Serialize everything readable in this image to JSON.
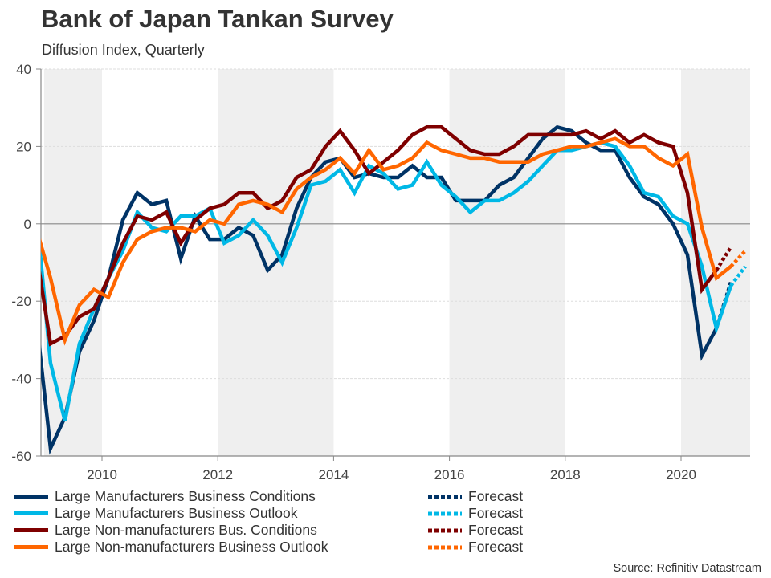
{
  "title": "Bank of Japan Tankan Survey",
  "subtitle": "Diffusion Index, Quarterly",
  "source": "Source: Refinitiv Datastream",
  "chart_data": {
    "type": "line",
    "title": "Bank of Japan Tankan Survey",
    "subtitle": "Diffusion Index, Quarterly",
    "xlabel": "",
    "ylabel": "",
    "ylim": [
      -60,
      40
    ],
    "xlim": [
      2009.0,
      2021.2
    ],
    "yticks": [
      40,
      20,
      0,
      -20,
      -40,
      -60
    ],
    "ytick_labels": [
      "40",
      "20",
      "0",
      "-20",
      "-40",
      "-60"
    ],
    "xticks": [
      2010,
      2012,
      2014,
      2016,
      2018,
      2020
    ],
    "xtick_labels": [
      "2010",
      "2012",
      "2014",
      "2016",
      "2018",
      "2020"
    ],
    "grid": "horizontal dashed",
    "shaded_periods": [
      [
        2009.0,
        2010
      ],
      [
        2012,
        2014
      ],
      [
        2016,
        2018
      ],
      [
        2020,
        2021.2
      ]
    ],
    "legend_placement": "bottom",
    "x": [
      "2008-12",
      "2009-03",
      "2009-06",
      "2009-09",
      "2009-12",
      "2010-03",
      "2010-06",
      "2010-09",
      "2010-12",
      "2011-03",
      "2011-06",
      "2011-09",
      "2011-12",
      "2012-03",
      "2012-06",
      "2012-09",
      "2012-12",
      "2013-03",
      "2013-06",
      "2013-09",
      "2013-12",
      "2014-03",
      "2014-06",
      "2014-09",
      "2014-12",
      "2015-03",
      "2015-06",
      "2015-09",
      "2015-12",
      "2016-03",
      "2016-06",
      "2016-09",
      "2016-12",
      "2017-03",
      "2017-06",
      "2017-09",
      "2017-12",
      "2018-03",
      "2018-06",
      "2018-09",
      "2018-12",
      "2019-03",
      "2019-06",
      "2019-09",
      "2019-12",
      "2020-03",
      "2020-06",
      "2020-09",
      "2020-12"
    ],
    "series": [
      {
        "name": "Large Manufacturers Business Conditions",
        "color": "#003366",
        "values": [
          -24,
          -58,
          -50,
          -33,
          -25,
          -14,
          1,
          8,
          5,
          6,
          -9,
          2,
          -4,
          -4,
          -1,
          -3,
          -12,
          -8,
          4,
          12,
          16,
          17,
          12,
          13,
          12,
          12,
          15,
          12,
          12,
          6,
          6,
          6,
          10,
          12,
          17,
          22,
          25,
          24,
          21,
          19,
          19,
          12,
          7,
          5,
          0,
          -8,
          -34,
          -27,
          null
        ],
        "forecast": {
          "label": "Forecast",
          "x": [
            "2020-09",
            "2020-12"
          ],
          "values": [
            -27,
            -15
          ]
        }
      },
      {
        "name": "Large Manufacturers Business Outlook",
        "color": "#00b8e6",
        "values": [
          4,
          -36,
          -51,
          -31,
          -22,
          -14,
          -7,
          3,
          -1,
          -2,
          2,
          2,
          4,
          -5,
          -3,
          1,
          -3,
          -10,
          -1,
          10,
          11,
          14,
          8,
          15,
          13,
          9,
          10,
          16,
          10,
          7,
          3,
          6,
          6,
          8,
          11,
          15,
          19,
          19,
          20,
          21,
          20,
          15,
          8,
          7,
          2,
          0,
          -11,
          -27,
          -16
        ],
        "forecast": {
          "label": "Forecast",
          "x": [
            "2020-12",
            "2021-03"
          ],
          "values": [
            -16,
            -11
          ]
        }
      },
      {
        "name": "Large Non-manufacturers Bus. Conditions",
        "color": "#7f0000",
        "values": [
          -7,
          -31,
          -29,
          -24,
          -22,
          -14,
          -5,
          2,
          1,
          3,
          -5,
          1,
          4,
          5,
          8,
          8,
          4,
          6,
          12,
          14,
          20,
          24,
          19,
          13,
          16,
          19,
          23,
          25,
          25,
          22,
          19,
          18,
          18,
          20,
          23,
          23,
          23,
          23,
          24,
          22,
          24,
          21,
          23,
          21,
          20,
          8,
          -17,
          -12,
          null
        ],
        "forecast": {
          "label": "Forecast",
          "x": [
            "2020-09",
            "2020-12"
          ],
          "values": [
            -12,
            -6
          ]
        }
      },
      {
        "name": "Large Non-manufacturers Business Outlook",
        "color": "#ff6600",
        "values": [
          -1,
          -14,
          -30,
          -21,
          -17,
          -19,
          -10,
          -4,
          -2,
          -1,
          -1,
          -2,
          1,
          0,
          5,
          6,
          5,
          3,
          9,
          12,
          14,
          17,
          13,
          19,
          14,
          15,
          17,
          21,
          19,
          18,
          17,
          17,
          16,
          16,
          16,
          18,
          19,
          20,
          20,
          21,
          22,
          20,
          20,
          17,
          15,
          18,
          -1,
          -14,
          -11
        ],
        "forecast": {
          "label": "Forecast",
          "x": [
            "2020-12",
            "2021-03"
          ],
          "values": [
            -11,
            -7
          ]
        }
      }
    ]
  },
  "legend": {
    "items": [
      {
        "label": "Large Manufacturers Business Conditions",
        "color": "#003366"
      },
      {
        "label": "Large Manufacturers Business Outlook",
        "color": "#00b8e6"
      },
      {
        "label": "Large Non-manufacturers Bus. Conditions",
        "color": "#7f0000"
      },
      {
        "label": "Large Non-manufacturers Business Outlook",
        "color": "#ff6600"
      }
    ],
    "forecast_items": [
      {
        "label": "Forecast",
        "color": "#003366"
      },
      {
        "label": "Forecast",
        "color": "#00b8e6"
      },
      {
        "label": "Forecast",
        "color": "#7f0000"
      },
      {
        "label": "Forecast",
        "color": "#ff6600"
      }
    ]
  }
}
